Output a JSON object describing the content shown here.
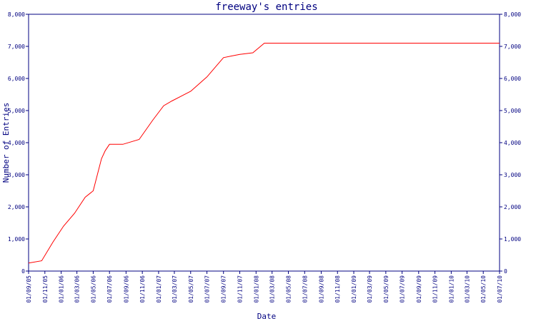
{
  "chart_data": {
    "type": "line",
    "title": "freeway's entries",
    "xlabel": "Date",
    "ylabel": "Number of Entries",
    "ylim": [
      0,
      8000
    ],
    "y_ticks": [
      0,
      1000,
      2000,
      3000,
      4000,
      5000,
      6000,
      7000,
      8000
    ],
    "y_tick_labels": [
      "0",
      "1,000",
      "2,000",
      "3,000",
      "4,000",
      "5,000",
      "6,000",
      "7,000",
      "8,000"
    ],
    "x_ticks": [
      "01/09/05",
      "01/11/05",
      "01/01/06",
      "01/03/06",
      "01/05/06",
      "01/07/06",
      "01/09/06",
      "01/11/06",
      "01/01/07",
      "01/03/07",
      "01/05/07",
      "01/07/07",
      "01/09/07",
      "01/11/07",
      "01/01/08",
      "01/03/08",
      "01/05/08",
      "01/07/08",
      "01/09/08",
      "01/11/08",
      "01/01/09",
      "01/03/09",
      "01/05/09",
      "01/07/09",
      "01/09/09",
      "01/11/09",
      "01/01/10",
      "01/03/10",
      "01/05/10",
      "01/07/10"
    ],
    "grid": false,
    "series": [
      {
        "color": "#ff0000",
        "x": [
          "2005-09-01",
          "2005-10-20",
          "2005-12-01",
          "2006-01-10",
          "2006-02-20",
          "2006-04-01",
          "2006-05-01",
          "2006-06-01",
          "2006-06-15",
          "2006-07-01",
          "2006-08-01",
          "2006-08-20",
          "2006-10-20",
          "2006-12-10",
          "2007-01-20",
          "2007-02-20",
          "2007-05-01",
          "2007-07-01",
          "2007-08-01",
          "2007-09-01",
          "2007-10-01",
          "2007-11-01",
          "2007-12-20",
          "2008-02-01",
          "2008-03-01",
          "2010-07-01"
        ],
        "values": [
          250,
          320,
          900,
          1400,
          1800,
          2300,
          2500,
          3500,
          3750,
          3950,
          3950,
          3950,
          4100,
          4700,
          5150,
          5300,
          5600,
          6050,
          6350,
          6650,
          6700,
          6750,
          6800,
          7100,
          7100,
          7100
        ]
      }
    ]
  }
}
